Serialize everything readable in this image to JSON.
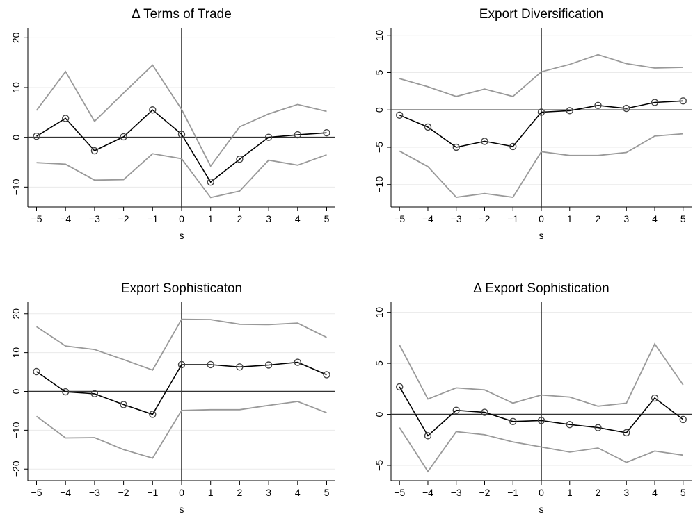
{
  "chart_data": [
    {
      "type": "line",
      "title": "Δ Terms of Trade",
      "xlabel": "s",
      "ylabel": "",
      "x": [
        -5,
        -4,
        -3,
        -2,
        -1,
        0,
        1,
        2,
        3,
        4,
        5
      ],
      "xlim": [
        -5.3,
        5.3
      ],
      "ylim": [
        -14,
        22
      ],
      "yticks": [
        -10,
        0,
        10,
        20
      ],
      "ytick_labels": [
        "−10",
        "0",
        "10",
        "20"
      ],
      "xticks": [
        -5,
        -4,
        -3,
        -2,
        -1,
        0,
        1,
        2,
        3,
        4,
        5
      ],
      "xtick_labels": [
        "−5",
        "−4",
        "−3",
        "−2",
        "−1",
        "0",
        "1",
        "2",
        "3",
        "4",
        "5"
      ],
      "series": [
        {
          "role": "estimate",
          "values": [
            0.2,
            3.8,
            -2.7,
            0.1,
            5.5,
            0.6,
            -9.0,
            -4.4,
            0.0,
            0.5,
            0.9
          ]
        },
        {
          "role": "upper",
          "values": [
            5.4,
            13.2,
            3.2,
            8.9,
            14.5,
            5.6,
            -5.8,
            2.1,
            4.7,
            6.6,
            5.2
          ]
        },
        {
          "role": "lower",
          "values": [
            -5.1,
            -5.4,
            -8.6,
            -8.5,
            -3.3,
            -4.3,
            -12.1,
            -10.8,
            -4.6,
            -5.6,
            -3.5
          ]
        }
      ],
      "grid": true,
      "colors": {
        "estimate": "#000000",
        "band": "#999999",
        "reference": "#333333",
        "grid": "#eaeaea"
      }
    },
    {
      "type": "line",
      "title": "Export Diversification",
      "xlabel": "s",
      "ylabel": "",
      "x": [
        -5,
        -4,
        -3,
        -2,
        -1,
        0,
        1,
        2,
        3,
        4,
        5
      ],
      "xlim": [
        -5.3,
        5.3
      ],
      "ylim": [
        -13,
        11
      ],
      "yticks": [
        -10,
        -5,
        0,
        5,
        10
      ],
      "ytick_labels": [
        "−10",
        "−5",
        "0",
        "5",
        "10"
      ],
      "xticks": [
        -5,
        -4,
        -3,
        -2,
        -1,
        0,
        1,
        2,
        3,
        4,
        5
      ],
      "xtick_labels": [
        "−5",
        "−4",
        "−3",
        "−2",
        "−1",
        "0",
        "1",
        "2",
        "3",
        "4",
        "5"
      ],
      "series": [
        {
          "role": "estimate",
          "values": [
            -0.7,
            -2.3,
            -5.0,
            -4.2,
            -4.9,
            -0.3,
            -0.1,
            0.6,
            0.2,
            1.0,
            1.2
          ]
        },
        {
          "role": "upper",
          "values": [
            4.2,
            3.1,
            1.8,
            2.8,
            1.8,
            5.1,
            6.1,
            7.4,
            6.2,
            5.6,
            5.7
          ]
        },
        {
          "role": "lower",
          "values": [
            -5.5,
            -7.6,
            -11.7,
            -11.2,
            -11.7,
            -5.6,
            -6.1,
            -6.1,
            -5.7,
            -3.5,
            -3.2
          ]
        }
      ],
      "grid": true,
      "colors": {
        "estimate": "#000000",
        "band": "#999999",
        "reference": "#333333",
        "grid": "#eaeaea"
      }
    },
    {
      "type": "line",
      "title": "Export Sophisticaton",
      "xlabel": "s",
      "ylabel": "",
      "x": [
        -5,
        -4,
        -3,
        -2,
        -1,
        0,
        1,
        2,
        3,
        4,
        5
      ],
      "xlim": [
        -5.3,
        5.3
      ],
      "ylim": [
        -23,
        23
      ],
      "yticks": [
        -20,
        -10,
        0,
        10,
        20
      ],
      "ytick_labels": [
        "−20",
        "−10",
        "0",
        "10",
        "20"
      ],
      "xticks": [
        -5,
        -4,
        -3,
        -2,
        -1,
        0,
        1,
        2,
        3,
        4,
        5
      ],
      "xtick_labels": [
        "−5",
        "−4",
        "−3",
        "−2",
        "−1",
        "0",
        "1",
        "2",
        "3",
        "4",
        "5"
      ],
      "series": [
        {
          "role": "estimate",
          "values": [
            5.1,
            -0.1,
            -0.6,
            -3.4,
            -5.9,
            6.9,
            6.9,
            6.3,
            6.8,
            7.5,
            4.3
          ]
        },
        {
          "role": "upper",
          "values": [
            16.7,
            11.7,
            10.8,
            8.2,
            5.5,
            18.6,
            18.5,
            17.3,
            17.2,
            17.6,
            13.9
          ]
        },
        {
          "role": "lower",
          "values": [
            -6.4,
            -12.0,
            -11.9,
            -15.0,
            -17.2,
            -4.9,
            -4.7,
            -4.7,
            -3.6,
            -2.6,
            -5.5
          ]
        }
      ],
      "grid": true,
      "colors": {
        "estimate": "#000000",
        "band": "#999999",
        "reference": "#333333",
        "grid": "#eaeaea"
      }
    },
    {
      "type": "line",
      "title": "Δ Export Sophistication",
      "xlabel": "s",
      "ylabel": "",
      "x": [
        -5,
        -4,
        -3,
        -2,
        -1,
        0,
        1,
        2,
        3,
        4,
        5
      ],
      "xlim": [
        -5.3,
        5.3
      ],
      "ylim": [
        -6.5,
        11
      ],
      "yticks": [
        -5,
        0,
        5,
        10
      ],
      "ytick_labels": [
        "−5",
        "0",
        "5",
        "10"
      ],
      "xticks": [
        -5,
        -4,
        -3,
        -2,
        -1,
        0,
        1,
        2,
        3,
        4,
        5
      ],
      "xtick_labels": [
        "−5",
        "−4",
        "−3",
        "−2",
        "−1",
        "0",
        "1",
        "2",
        "3",
        "4",
        "5"
      ],
      "series": [
        {
          "role": "estimate",
          "values": [
            2.7,
            -2.1,
            0.4,
            0.2,
            -0.7,
            -0.6,
            -1.0,
            -1.3,
            -1.8,
            1.6,
            -0.5
          ]
        },
        {
          "role": "upper",
          "values": [
            6.8,
            1.5,
            2.6,
            2.4,
            1.1,
            1.9,
            1.7,
            0.8,
            1.1,
            6.9,
            2.9
          ]
        },
        {
          "role": "lower",
          "values": [
            -1.3,
            -5.6,
            -1.7,
            -2.0,
            -2.7,
            -3.2,
            -3.7,
            -3.3,
            -4.7,
            -3.6,
            -4.0
          ]
        }
      ],
      "grid": true,
      "colors": {
        "estimate": "#000000",
        "band": "#999999",
        "reference": "#333333",
        "grid": "#eaeaea"
      }
    }
  ]
}
